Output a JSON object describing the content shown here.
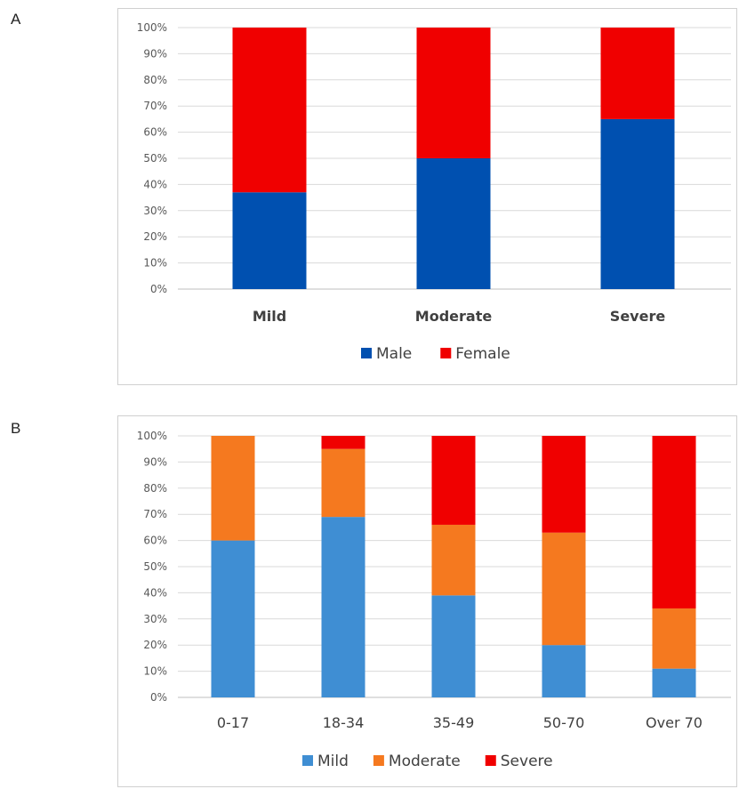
{
  "panels": {
    "a_label": "A",
    "b_label": "B"
  },
  "chart_data": [
    {
      "type": "bar",
      "stacked": true,
      "percent": true,
      "categories": [
        "Mild",
        "Moderate",
        "Severe"
      ],
      "series": [
        {
          "name": "Male",
          "color": "#0050b0",
          "values": [
            37,
            50,
            65
          ]
        },
        {
          "name": "Female",
          "color": "#f00000",
          "values": [
            63,
            50,
            35
          ]
        }
      ],
      "yticks": [
        "0%",
        "10%",
        "20%",
        "30%",
        "40%",
        "50%",
        "60%",
        "70%",
        "80%",
        "90%",
        "100%"
      ],
      "ylim": [
        0,
        100
      ],
      "grid": true,
      "legend": "bottom"
    },
    {
      "type": "bar",
      "stacked": true,
      "percent": true,
      "categories": [
        "0-17",
        "18-34",
        "35-49",
        "50-70",
        "Over 70"
      ],
      "series": [
        {
          "name": "Mild",
          "color": "#3f8ed3",
          "values": [
            60,
            69,
            39,
            20,
            11
          ]
        },
        {
          "name": "Moderate",
          "color": "#f5791f",
          "values": [
            40,
            26,
            27,
            43,
            23
          ]
        },
        {
          "name": "Severe",
          "color": "#f00000",
          "values": [
            0,
            5,
            34,
            37,
            66
          ]
        }
      ],
      "yticks": [
        "0%",
        "10%",
        "20%",
        "30%",
        "40%",
        "50%",
        "60%",
        "70%",
        "80%",
        "90%",
        "100%"
      ],
      "ylim": [
        0,
        100
      ],
      "grid": true,
      "legend": "bottom"
    }
  ]
}
